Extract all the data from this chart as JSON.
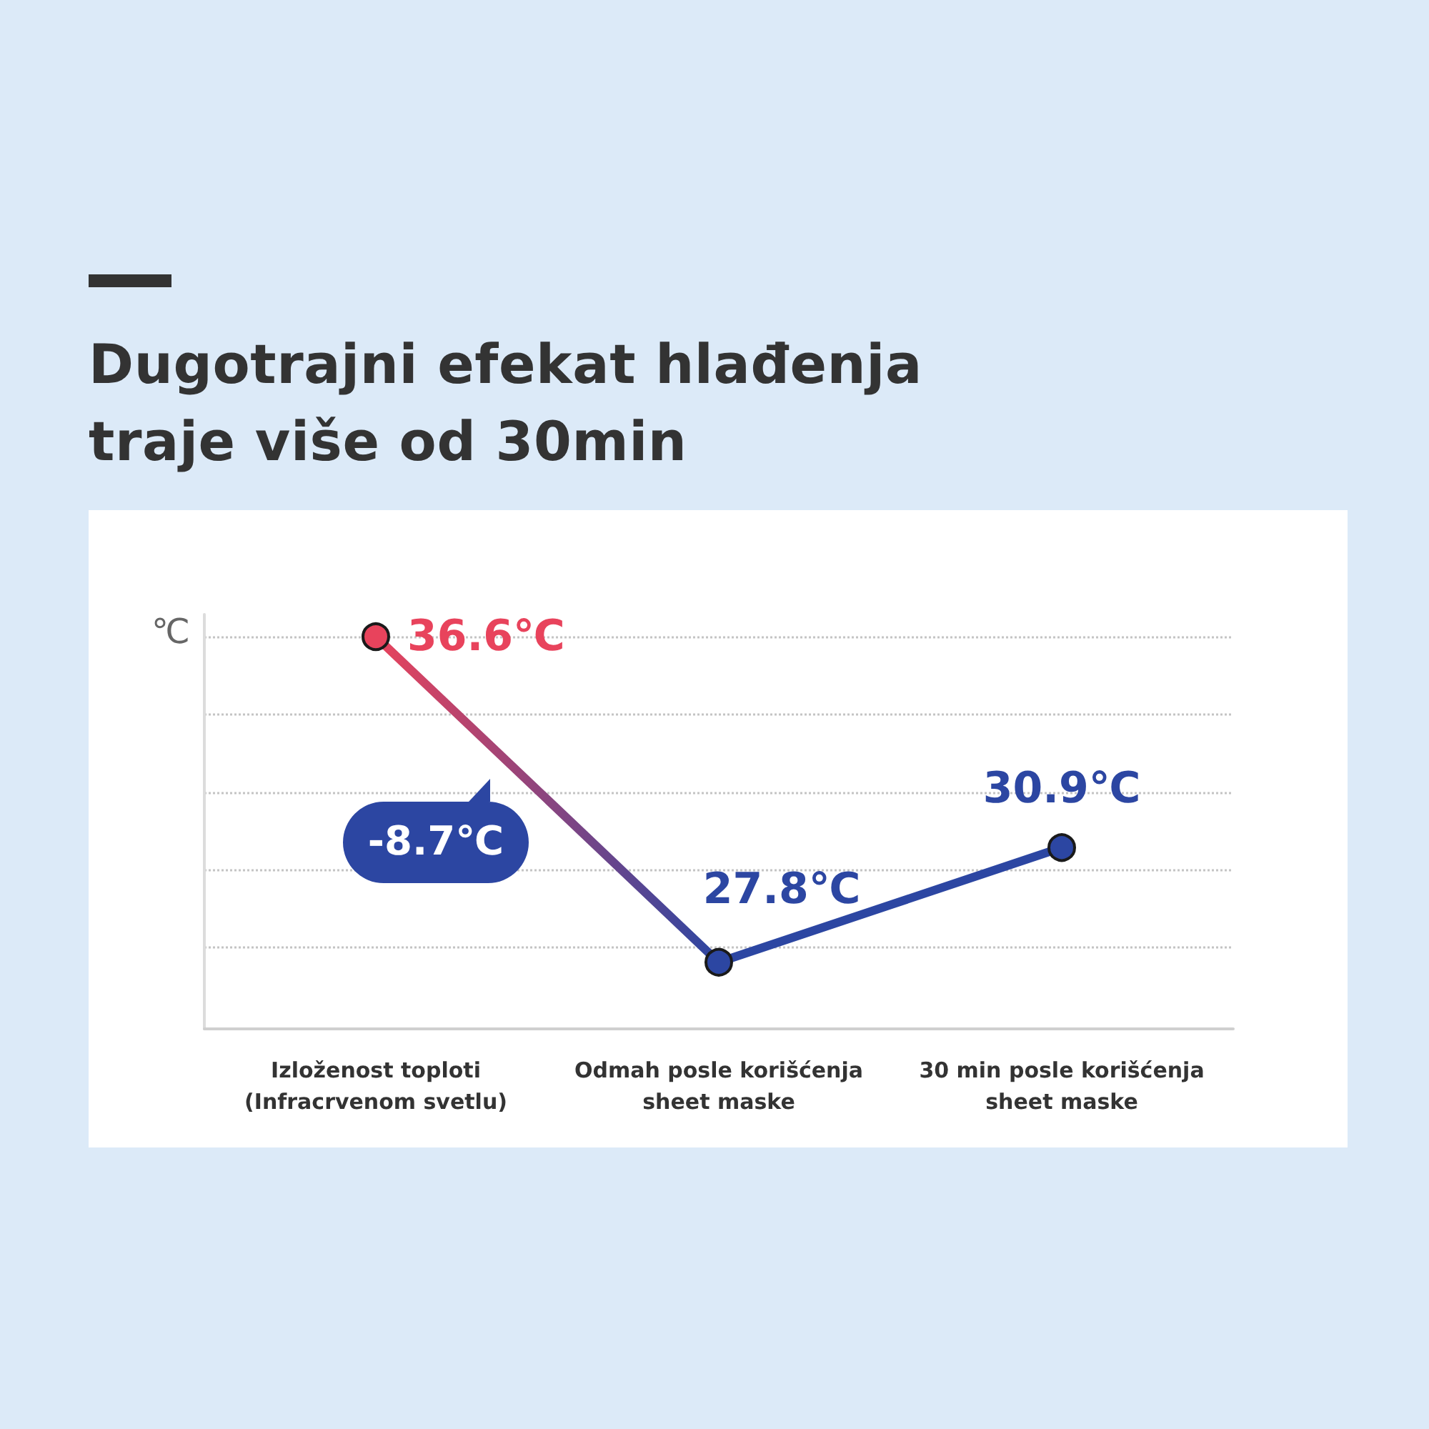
{
  "chart_data": {
    "type": "line",
    "title": "Dugotrajni efekat hlađenja\ntraje više od 30min",
    "ylabel": "℃",
    "categories": [
      "Izloženost toploti\n(Infracrvenom svetlu)",
      "Odmah posle korišćenja\nsheet maske",
      "30 min posle korišćenja\nsheet maske"
    ],
    "values": [
      36.6,
      27.8,
      30.9
    ],
    "colors": [
      "#e8435c",
      "#2c46a2",
      "#2c46a2"
    ],
    "value_labels": [
      "36.6℃",
      "27.8℃",
      "30.9℃"
    ],
    "ylim": [
      26,
      37.2
    ],
    "yticks": [
      {
        "value": 28.2,
        "label": null
      },
      {
        "value": 30.3,
        "label": null
      },
      {
        "value": 32.4,
        "label": null
      },
      {
        "value": 34.5,
        "label": null
      },
      {
        "value": 36.6,
        "label": null
      }
    ],
    "annotations": [
      "-8.7℃"
    ],
    "grid": "y",
    "tick_labels": "x",
    "marker": "circle",
    "line_style": "solid"
  }
}
